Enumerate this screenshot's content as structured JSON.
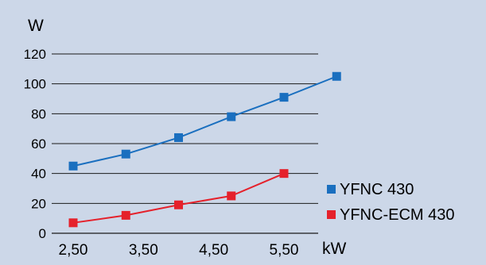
{
  "chart_data": {
    "type": "line",
    "ylabel": "W",
    "xlabel": "kW",
    "y_ticks": [
      "0",
      "20",
      "40",
      "60",
      "80",
      "100",
      "120"
    ],
    "ylim": [
      0,
      120
    ],
    "x_ticks": [
      "2,50",
      "3,50",
      "4,50",
      "5,50"
    ],
    "xlim": [
      2.5,
      5.5
    ],
    "grid": "horizontal",
    "legend_position": "bottom-right",
    "series": [
      {
        "name": "YFNC 430",
        "color": "#1a6fbf",
        "marker": "square",
        "points": [
          [
            2.5,
            45
          ],
          [
            3.25,
            53
          ],
          [
            4.0,
            64
          ],
          [
            4.75,
            78
          ],
          [
            5.5,
            91
          ],
          [
            6.25,
            105
          ]
        ]
      },
      {
        "name": "YFNC-ECM 430",
        "color": "#e5212b",
        "marker": "square",
        "points": [
          [
            2.5,
            7
          ],
          [
            3.25,
            12
          ],
          [
            4.0,
            19
          ],
          [
            4.75,
            25
          ],
          [
            5.5,
            40
          ]
        ]
      }
    ]
  }
}
